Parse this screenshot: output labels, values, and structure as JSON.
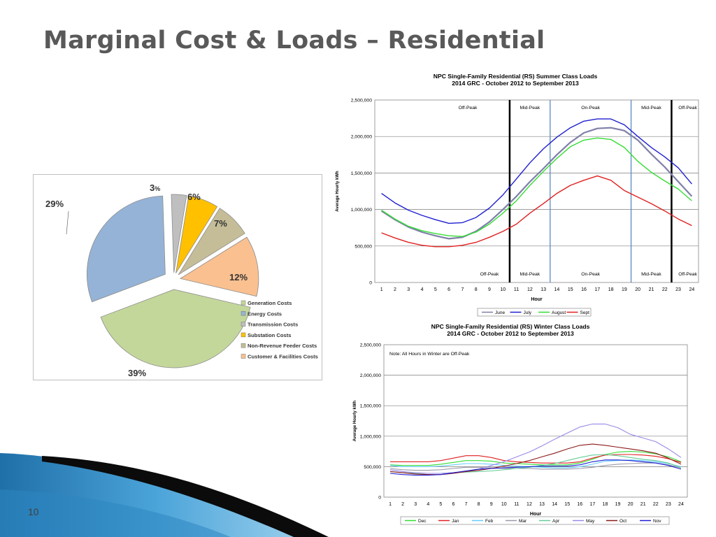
{
  "slide": {
    "title": "Marginal Cost & Loads – Residential",
    "page_number": "10",
    "accent_color": "#2e86c1"
  },
  "chart_data": [
    {
      "type": "pie",
      "title": "",
      "slices": [
        {
          "label": "Generation Costs",
          "value": 39,
          "text": "39%",
          "color": "#c4d79b"
        },
        {
          "label": "Energy Costs",
          "value": 29,
          "text": "29%",
          "color": "#95b3d7"
        },
        {
          "label": "Transmission Costs",
          "value": 3,
          "text": "3",
          "suffix": "%",
          "color": "#bfbfbf"
        },
        {
          "label": "Substation Costs",
          "value": 6,
          "text": "6%",
          "color": "#ffc000"
        },
        {
          "label": "Non-Revenue Feeder Costs",
          "value": 7,
          "text": "7%",
          "color": "#c4bd97"
        },
        {
          "label": "Customer & Facilities Costs",
          "value": 12,
          "text": "12%",
          "color": "#fac090"
        }
      ],
      "legend_position": "bottom-right"
    },
    {
      "type": "line",
      "title": "NPC Single-Family Residential (RS) Summer Class Loads",
      "subtitle": "2014 GRC - October 2012 to September 2013",
      "xlabel": "Hour",
      "ylabel": "Average Hourly kWh",
      "x": [
        1,
        2,
        3,
        4,
        5,
        6,
        7,
        8,
        9,
        10,
        11,
        12,
        13,
        14,
        15,
        16,
        17,
        18,
        19,
        20,
        21,
        22,
        23,
        24
      ],
      "ylim": [
        0,
        2500000
      ],
      "yticks": [
        "0",
        "500,000",
        "1,000,000",
        "1,500,000",
        "2,000,000",
        "2,500,000"
      ],
      "grid": true,
      "legend_position": "bottom",
      "period_lines": [
        {
          "hour": 10.5,
          "color": "#000000",
          "width": 2.5
        },
        {
          "hour": 13.5,
          "color": "#4f81bd",
          "width": 1.2
        },
        {
          "hour": 19.5,
          "color": "#4f81bd",
          "width": 1.2
        },
        {
          "hour": 22.5,
          "color": "#000000",
          "width": 2.5
        }
      ],
      "annotations_top": [
        {
          "text": "Off-Peak",
          "hour": 7.4
        },
        {
          "text": "Mid-Peak",
          "hour": 12.0
        },
        {
          "text": "On-Peak",
          "hour": 16.5
        },
        {
          "text": "Mid-Peak",
          "hour": 21.0
        },
        {
          "text": "Off-Peak",
          "hour": 23.7
        }
      ],
      "annotations_bottom": [
        {
          "text": "Off-Peak",
          "hour": 9.0
        },
        {
          "text": "Mid-Peak",
          "hour": 12.0
        },
        {
          "text": "On-Peak",
          "hour": 16.5
        },
        {
          "text": "Mid-Peak",
          "hour": 21.0
        },
        {
          "text": "Off-Peak",
          "hour": 23.7
        }
      ],
      "series": [
        {
          "name": "June",
          "color": "#7f7fa8",
          "width": 2.2,
          "values": [
            980000,
            860000,
            760000,
            690000,
            640000,
            600000,
            620000,
            700000,
            830000,
            1000000,
            1180000,
            1380000,
            1560000,
            1750000,
            1920000,
            2050000,
            2110000,
            2120000,
            2080000,
            1950000,
            1760000,
            1580000,
            1380000,
            1180000
          ]
        },
        {
          "name": "July",
          "color": "#1f1fd1",
          "width": 1.4,
          "values": [
            1220000,
            1090000,
            990000,
            920000,
            860000,
            810000,
            820000,
            890000,
            1020000,
            1200000,
            1420000,
            1640000,
            1830000,
            1990000,
            2120000,
            2210000,
            2240000,
            2240000,
            2160000,
            2000000,
            1850000,
            1720000,
            1570000,
            1350000
          ]
        },
        {
          "name": "August",
          "color": "#33dd33",
          "width": 1.4,
          "values": [
            990000,
            870000,
            770000,
            710000,
            670000,
            640000,
            630000,
            690000,
            800000,
            950000,
            1120000,
            1330000,
            1520000,
            1700000,
            1860000,
            1950000,
            1980000,
            1960000,
            1850000,
            1660000,
            1510000,
            1390000,
            1280000,
            1120000
          ]
        },
        {
          "name": "Sept",
          "color": "#e02020",
          "width": 1.4,
          "values": [
            680000,
            610000,
            550000,
            510000,
            490000,
            490000,
            510000,
            550000,
            620000,
            700000,
            800000,
            950000,
            1080000,
            1220000,
            1330000,
            1400000,
            1460000,
            1400000,
            1260000,
            1170000,
            1080000,
            980000,
            870000,
            780000
          ]
        }
      ]
    },
    {
      "type": "line",
      "title": "NPC Single-Family Residential (RS) Winter Class Loads",
      "subtitle": "2014 GRC - October 2012 to September 2013",
      "xlabel": "Hour",
      "ylabel": "Average Hourly kWh",
      "note": "Note: All Hours in Winter are Off-Peak",
      "x": [
        1,
        2,
        3,
        4,
        5,
        6,
        7,
        8,
        9,
        10,
        11,
        12,
        13,
        14,
        15,
        16,
        17,
        18,
        19,
        20,
        21,
        22,
        23,
        24
      ],
      "ylim": [
        0,
        2500000
      ],
      "yticks": [
        "0",
        "500,000",
        "1,000,000",
        "1,500,000",
        "2,000,000",
        "2,500,000"
      ],
      "grid": true,
      "legend_position": "bottom",
      "series": [
        {
          "name": "Dec",
          "color": "#33dd33",
          "values": [
            530000,
            520000,
            520000,
            520000,
            540000,
            570000,
            600000,
            600000,
            590000,
            560000,
            550000,
            540000,
            530000,
            530000,
            530000,
            560000,
            620000,
            700000,
            740000,
            750000,
            740000,
            710000,
            660000,
            580000
          ]
        },
        {
          "name": "Jan",
          "color": "#e02020",
          "values": [
            580000,
            580000,
            580000,
            580000,
            600000,
            640000,
            680000,
            680000,
            650000,
            600000,
            580000,
            570000,
            560000,
            560000,
            560000,
            580000,
            640000,
            690000,
            700000,
            700000,
            690000,
            670000,
            630000,
            570000
          ]
        },
        {
          "name": "Feb",
          "color": "#66ccff",
          "values": [
            520000,
            500000,
            500000,
            500000,
            510000,
            530000,
            550000,
            550000,
            540000,
            520000,
            510000,
            500000,
            490000,
            480000,
            480000,
            500000,
            540000,
            590000,
            600000,
            610000,
            600000,
            580000,
            550000,
            500000
          ]
        },
        {
          "name": "Mar",
          "color": "#9999aa",
          "values": [
            470000,
            450000,
            440000,
            440000,
            450000,
            470000,
            490000,
            490000,
            480000,
            470000,
            470000,
            470000,
            460000,
            460000,
            460000,
            470000,
            490000,
            520000,
            540000,
            550000,
            560000,
            560000,
            530000,
            480000
          ]
        },
        {
          "name": "Apr",
          "color": "#66cc99",
          "values": [
            420000,
            400000,
            390000,
            390000,
            390000,
            400000,
            410000,
            420000,
            430000,
            450000,
            470000,
            490000,
            520000,
            550000,
            600000,
            650000,
            690000,
            700000,
            680000,
            650000,
            620000,
            600000,
            560000,
            480000
          ]
        },
        {
          "name": "May",
          "color": "#9a88e6",
          "values": [
            450000,
            420000,
            400000,
            390000,
            390000,
            400000,
            420000,
            460000,
            520000,
            580000,
            660000,
            740000,
            840000,
            950000,
            1050000,
            1150000,
            1200000,
            1200000,
            1140000,
            1030000,
            970000,
            910000,
            790000,
            650000
          ]
        },
        {
          "name": "Oct",
          "color": "#8b1a1a",
          "values": [
            420000,
            400000,
            380000,
            370000,
            370000,
            390000,
            420000,
            440000,
            470000,
            510000,
            550000,
            600000,
            660000,
            720000,
            790000,
            850000,
            870000,
            850000,
            820000,
            790000,
            760000,
            720000,
            640000,
            540000
          ]
        },
        {
          "name": "Nov",
          "color": "#1f1fd1",
          "values": [
            390000,
            370000,
            360000,
            360000,
            370000,
            400000,
            430000,
            460000,
            470000,
            480000,
            490000,
            500000,
            510000,
            510000,
            510000,
            530000,
            580000,
            610000,
            610000,
            600000,
            580000,
            560000,
            520000,
            460000
          ]
        }
      ]
    }
  ]
}
